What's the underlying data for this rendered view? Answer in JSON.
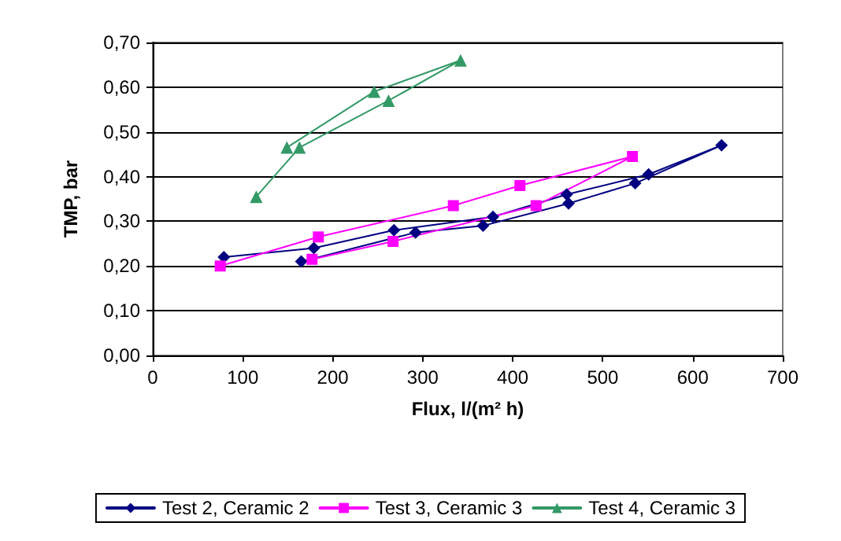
{
  "chart_data": {
    "type": "line",
    "xlabel": "Flux, l/(m² h)",
    "ylabel": "TMP, bar",
    "xlim": [
      0,
      700
    ],
    "xticks": [
      0,
      100,
      200,
      300,
      400,
      500,
      600,
      700
    ],
    "ylim": [
      0,
      0.7
    ],
    "yticks": [
      {
        "value": 0,
        "label": "0,00"
      },
      {
        "value": 0.1,
        "label": "0,10"
      },
      {
        "value": 0.2,
        "label": "0,20"
      },
      {
        "value": 0.3,
        "label": "0,30"
      },
      {
        "value": 0.4,
        "label": "0,40"
      },
      {
        "value": 0.5,
        "label": "0,50"
      },
      {
        "value": 0.6,
        "label": "0,60"
      },
      {
        "value": 0.7,
        "label": "0,70"
      }
    ],
    "grid": "y",
    "legend": "bottom",
    "line_style": "solid",
    "series": [
      {
        "name": "Test 2, Ceramic 2",
        "color": "#000080",
        "marker": "diamond",
        "x": [
          79,
          179,
          268,
          378,
          460,
          551,
          632,
          536,
          462,
          367,
          292,
          165
        ],
        "values": [
          0.22,
          0.24,
          0.28,
          0.31,
          0.36,
          0.405,
          0.47,
          0.385,
          0.34,
          0.29,
          0.275,
          0.21
        ]
      },
      {
        "name": "Test 3, Ceramic 3",
        "color": "#ff00ff",
        "marker": "square",
        "x": [
          75,
          184,
          334,
          408,
          533,
          426,
          267,
          177
        ],
        "values": [
          0.2,
          0.265,
          0.335,
          0.38,
          0.445,
          0.335,
          0.255,
          0.215
        ]
      },
      {
        "name": "Test 4, Ceramic 3",
        "color": "#339966",
        "marker": "triangle",
        "x": [
          115,
          163,
          262,
          342,
          246,
          149
        ],
        "values": [
          0.355,
          0.465,
          0.57,
          0.66,
          0.59,
          0.465
        ]
      }
    ]
  }
}
